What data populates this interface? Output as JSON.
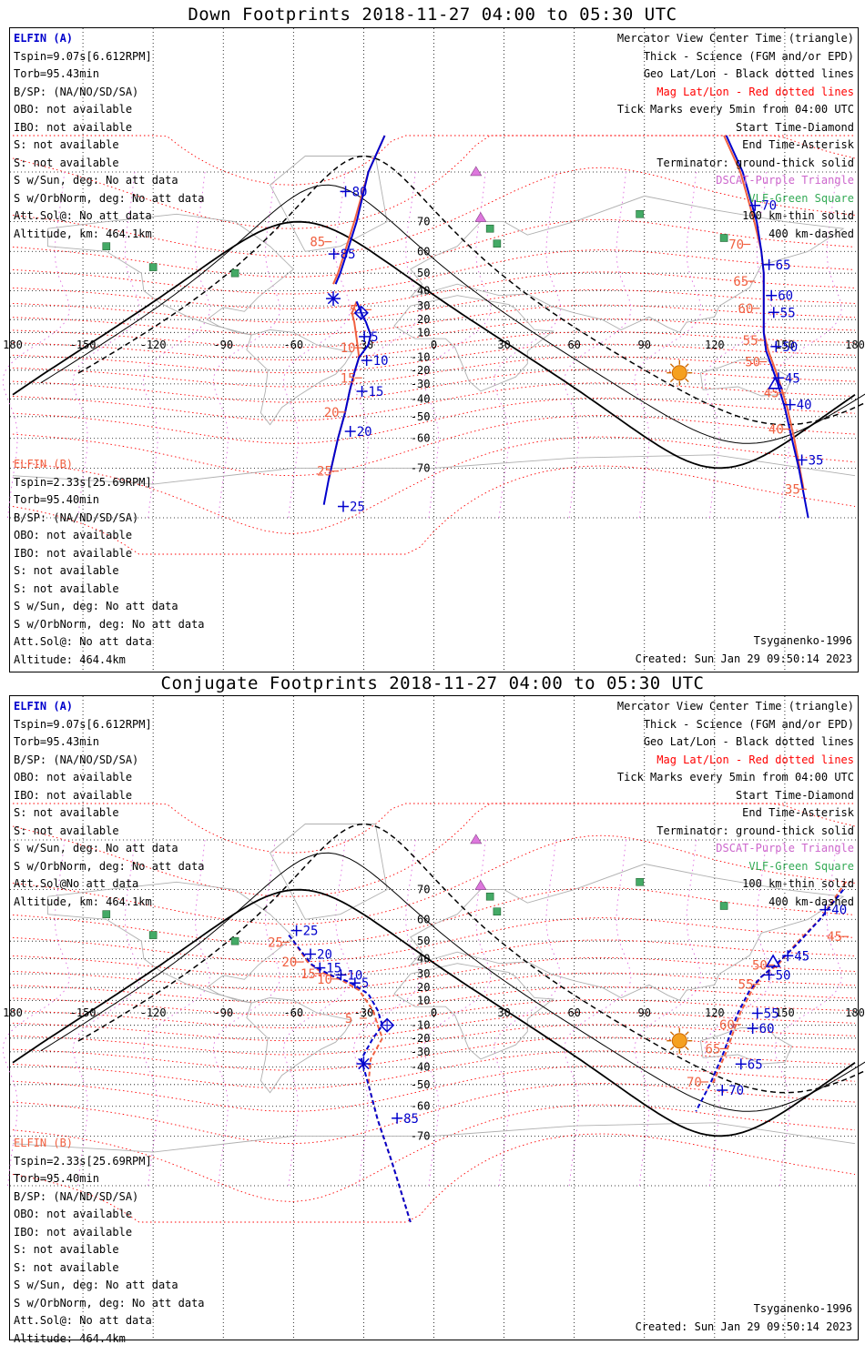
{
  "panels": [
    {
      "title": "Down Footprints 2018-11-27 04:00 to 05:30 UTC",
      "elfin_a": {
        "name": "ELFIN (A)",
        "lines": [
          "Tspin=9.07s[6.612RPM]",
          "Torb=95.43min",
          "B/SP: (NA/NO/SD/SA)",
          "OBO: not available",
          "IBO: not available",
          "S: not available",
          "S: not available",
          "S w/Sun, deg: No att data",
          "S w/OrbNorm, deg: No att data",
          "Att.Sol@: No att data",
          "Altitude, km: 464.1km"
        ]
      },
      "elfin_b": {
        "name": "ELFIN (B)",
        "lines": [
          "Tspin=2.33s[25.69RPM]",
          "Torb=95.40min",
          "B/SP: (NA/ND/SD/SA)",
          "OBO: not available",
          "IBO: not available",
          "S: not available",
          "S: not available",
          "S w/Sun, deg: No att data",
          "S w/OrbNorm, deg: No att data",
          "Att.Sol@: No att data",
          "Altitude: 464.4km"
        ]
      },
      "model": "Tsyganenko-1996",
      "created": "Created: Sun Jan 29 09:50:14 2023",
      "track_a": [
        [
          -21,
          90
        ],
        [
          -28,
          80
        ],
        [
          -33,
          70
        ],
        [
          -37,
          60
        ],
        [
          -40,
          50
        ],
        [
          -42,
          44
        ]
      ],
      "track_a_mag": [
        [
          -21,
          90
        ],
        [
          -28,
          80
        ],
        [
          -34,
          70
        ],
        [
          -38,
          60
        ],
        [
          -41,
          50
        ],
        [
          -43,
          44
        ]
      ],
      "track_b": [
        [
          -33,
          33
        ],
        [
          -31,
          25
        ],
        [
          -29,
          18
        ],
        [
          -27,
          8
        ],
        [
          -28,
          0
        ],
        [
          -32,
          -10
        ],
        [
          -34,
          -22
        ],
        [
          -36,
          -35
        ],
        [
          -38,
          -48
        ],
        [
          -41,
          -60
        ],
        [
          -45,
          -73
        ],
        [
          -47,
          -78
        ]
      ],
      "track_b_mag": [
        [
          -33,
          33
        ],
        [
          -35,
          25
        ],
        [
          -34,
          18
        ],
        [
          -33,
          5
        ],
        [
          -32,
          -10
        ],
        [
          -34,
          -22
        ],
        [
          -36,
          -35
        ],
        [
          -38,
          -48
        ],
        [
          -41,
          -60
        ],
        [
          -45,
          -73
        ]
      ],
      "track_c": [
        [
          125,
          90
        ],
        [
          132,
          80
        ],
        [
          138,
          70
        ],
        [
          140,
          60
        ],
        [
          141,
          50
        ],
        [
          141,
          38
        ],
        [
          141,
          10
        ],
        [
          142,
          -5
        ],
        [
          144,
          -15
        ],
        [
          147,
          -30
        ],
        [
          150,
          -45
        ],
        [
          153,
          -60
        ],
        [
          156,
          -70
        ],
        [
          160,
          -80
        ]
      ],
      "track_c_mag": [
        [
          124,
          90
        ],
        [
          131,
          80
        ],
        [
          137,
          70
        ],
        [
          140,
          60
        ],
        [
          141,
          50
        ],
        [
          141,
          38
        ],
        [
          141,
          10
        ],
        [
          143,
          -5
        ],
        [
          145,
          -15
        ],
        [
          148,
          -30
        ],
        [
          151,
          -45
        ],
        [
          154,
          -60
        ],
        [
          158,
          -75
        ]
      ],
      "labels_blue": [
        {
          "t": "80",
          "lon": -35,
          "lat": 76
        },
        {
          "t": "85",
          "lon": -40,
          "lat": 57
        },
        {
          "t": "5",
          "lon": -27,
          "lat": 3
        },
        {
          "t": "10",
          "lon": -26,
          "lat": -16
        },
        {
          "t": "15",
          "lon": -28,
          "lat": -38
        },
        {
          "t": "20",
          "lon": -33,
          "lat": -59
        },
        {
          "t": "25",
          "lon": -36,
          "lat": -79
        },
        {
          "t": "70",
          "lon": 140,
          "lat": 73
        },
        {
          "t": "65",
          "lon": 146,
          "lat": 52
        },
        {
          "t": "60",
          "lon": 147,
          "lat": 34
        },
        {
          "t": "55",
          "lon": 148,
          "lat": 22
        },
        {
          "t": "50",
          "lon": 149,
          "lat": -5
        },
        {
          "t": "45",
          "lon": 150,
          "lat": -29
        },
        {
          "t": "40",
          "lon": 155,
          "lat": -46
        },
        {
          "t": "35",
          "lon": 160,
          "lat": -69
        }
      ],
      "labels_mag": [
        {
          "t": "85",
          "lon": -53,
          "lat": 62
        },
        {
          "t": "5",
          "lon": -36,
          "lat": 24
        },
        {
          "t": "10",
          "lon": -40,
          "lat": -6
        },
        {
          "t": "15",
          "lon": -40,
          "lat": -29
        },
        {
          "t": "20",
          "lon": -47,
          "lat": -50
        },
        {
          "t": "25",
          "lon": -50,
          "lat": -72
        },
        {
          "t": "70",
          "lon": 126,
          "lat": 61
        },
        {
          "t": "65",
          "lon": 128,
          "lat": 43
        },
        {
          "t": "60",
          "lon": 130,
          "lat": 25
        },
        {
          "t": "55",
          "lon": 132,
          "lat": 0
        },
        {
          "t": "50",
          "lon": 133,
          "lat": -17
        },
        {
          "t": "45",
          "lon": 141,
          "lat": -39
        },
        {
          "t": "40",
          "lon": 143,
          "lat": -58
        },
        {
          "t": "35",
          "lon": 150,
          "lat": -76
        }
      ],
      "start_diamond": [
        -31,
        25
      ],
      "end_asterisk": [
        -43,
        35
      ],
      "center_triangle": [
        146,
        -30
      ]
    },
    {
      "title": "Conjugate Footprints 2018-11-27 04:00 to 05:30 UTC",
      "elfin_a": {
        "name": "ELFIN (A)",
        "lines": [
          "Tspin=9.07s[6.612RPM]",
          "Torb=95.43min",
          "B/SP: (NA/NO/SD/SA)",
          "OBO: not available",
          "IBO: not available",
          "S: not available",
          "S: not available",
          "S w/Sun, deg: No att data",
          "S w/OrbNorm, deg: No att data",
          "Att.Sol@No att data",
          "Altitude, km: 464.1km"
        ]
      },
      "elfin_b": {
        "name": "ELFIN (B)",
        "lines": [
          "Tspin=2.33s[25.69RPM]",
          "Torb=95.40min",
          "B/SP: (NA/ND/SD/SA)",
          "OBO: not available",
          "IBO: not available",
          "S: not available",
          "S: not available",
          "S w/Sun, deg: No att data",
          "S w/OrbNorm, deg: No att data",
          "Att.Sol@: No att data",
          "Altitude: 464.4km"
        ]
      },
      "model": "Tsyganenko-1996",
      "created": "Created: Sun Jan 29 09:50:14 2023",
      "track_a": [
        [
          -62,
          53
        ],
        [
          -57,
          45
        ],
        [
          -52,
          36
        ],
        [
          -44,
          29
        ],
        [
          -36,
          24
        ],
        [
          -28,
          15
        ],
        [
          -24,
          2
        ],
        [
          -22,
          -10
        ],
        [
          -26,
          -20
        ],
        [
          -31,
          -35
        ],
        [
          -28,
          -50
        ],
        [
          -24,
          -65
        ],
        [
          -18,
          -76
        ],
        [
          -10,
          -84
        ]
      ],
      "track_a_mag": [
        [
          -60,
          50
        ],
        [
          -54,
          38
        ],
        [
          -48,
          31
        ],
        [
          -40,
          26
        ],
        [
          -32,
          18
        ],
        [
          -26,
          2
        ],
        [
          -24,
          -10
        ],
        [
          -22,
          -20
        ],
        [
          -27,
          -35
        ],
        [
          -28,
          -50
        ],
        [
          -24,
          -65
        ],
        [
          -18,
          -76
        ],
        [
          -10,
          -84
        ]
      ],
      "track_b": [],
      "track_b_mag": [],
      "track_c": [
        [
          175,
          70
        ],
        [
          165,
          60
        ],
        [
          155,
          48
        ],
        [
          146,
          36
        ],
        [
          140,
          28
        ],
        [
          135,
          18
        ],
        [
          130,
          0
        ],
        [
          128,
          -10
        ],
        [
          124,
          -30
        ],
        [
          118,
          -50
        ],
        [
          112,
          -62
        ]
      ],
      "track_c_mag": [
        [
          176,
          72
        ],
        [
          166,
          61
        ],
        [
          155,
          49
        ],
        [
          147,
          36
        ],
        [
          140,
          28
        ],
        [
          136,
          18
        ],
        [
          131,
          0
        ],
        [
          129,
          -10
        ],
        [
          125,
          -30
        ],
        [
          119,
          -50
        ]
      ],
      "labels_blue": [
        {
          "t": "25",
          "lon": -56,
          "lat": 53
        },
        {
          "t": "20",
          "lon": -50,
          "lat": 40
        },
        {
          "t": "15",
          "lon": -46,
          "lat": 31
        },
        {
          "t": "10",
          "lon": -37,
          "lat": 26
        },
        {
          "t": "5",
          "lon": -31,
          "lat": 20
        },
        {
          "t": "85",
          "lon": -13,
          "lat": -66
        },
        {
          "t": "40",
          "lon": 170,
          "lat": 62
        },
        {
          "t": "45",
          "lon": 154,
          "lat": 39
        },
        {
          "t": "50",
          "lon": 146,
          "lat": 26
        },
        {
          "t": "55",
          "lon": 141,
          "lat": -4
        },
        {
          "t": "60",
          "lon": 139,
          "lat": -16
        },
        {
          "t": "65",
          "lon": 134,
          "lat": -41
        },
        {
          "t": "70",
          "lon": 126,
          "lat": -55
        }
      ],
      "labels_mag": [
        {
          "t": "25",
          "lon": -71,
          "lat": 47
        },
        {
          "t": "20",
          "lon": -65,
          "lat": 35
        },
        {
          "t": "15",
          "lon": -57,
          "lat": 27
        },
        {
          "t": "10",
          "lon": -50,
          "lat": 23
        },
        {
          "t": "5",
          "lon": -38,
          "lat": -8
        },
        {
          "t": "50",
          "lon": 136,
          "lat": 33
        },
        {
          "t": "55",
          "lon": 130,
          "lat": 19
        },
        {
          "t": "60",
          "lon": 122,
          "lat": -13
        },
        {
          "t": "65",
          "lon": 116,
          "lat": -31
        },
        {
          "t": "70",
          "lon": 108,
          "lat": -51
        },
        {
          "t": "45",
          "lon": 168,
          "lat": 50
        }
      ],
      "start_diamond": [
        -20,
        -10
      ],
      "end_asterisk": [
        -30,
        -38
      ],
      "center_triangle": [
        145,
        38
      ]
    }
  ],
  "legend_right": [
    {
      "text": "Mercator View Center Time (triangle)",
      "color": "#000000"
    },
    {
      "text": "Thick - Science (FGM and/or EPD)",
      "color": "#000000"
    },
    {
      "text": "Geo Lat/Lon - Black dotted lines",
      "color": "#000000"
    },
    {
      "text": "Mag Lat/Lon - Red dotted lines",
      "color": "#ff0000"
    },
    {
      "text": "Tick Marks every 5min from 04:00 UTC",
      "color": "#000000"
    },
    {
      "text": "Start Time-Diamond",
      "color": "#000000"
    },
    {
      "text": "End Time-Asterisk",
      "color": "#000000"
    },
    {
      "text": "Terminator: ground-thick solid",
      "color": "#000000"
    },
    {
      "text": "DSCAT-Purple Triangle",
      "color": "#cc66cc"
    },
    {
      "text": "VLF-Green Square",
      "color": "#33aa55"
    },
    {
      "text": "100 km-thin solid",
      "color": "#000000"
    },
    {
      "text": "400 km-dashed",
      "color": "#000000"
    }
  ],
  "lon_ticks": [
    "180",
    "-150",
    "-120",
    "-90",
    "-60",
    "-30",
    "0",
    "30",
    "60",
    "90",
    "120",
    "150",
    "180"
  ],
  "lat_ticks": [
    "70",
    "60",
    "50",
    "40",
    "30",
    "20",
    "10",
    "-10",
    "-20",
    "-30",
    "-40",
    "-50",
    "-60",
    "-70"
  ],
  "sun_lon": 105,
  "sun_lat": -22,
  "vlf_squares": [
    [
      -140,
      62
    ],
    [
      -120,
      53
    ],
    [
      -85,
      50
    ],
    [
      24,
      68
    ],
    [
      27,
      63
    ],
    [
      88,
      72
    ],
    [
      124,
      65
    ]
  ],
  "dscat_triangles": [
    [
      18,
      80
    ],
    [
      20,
      71
    ]
  ],
  "colors": {
    "blue": "#0000cc",
    "orange": "#f06040",
    "red": "#ff0000",
    "magenta": "#dd66dd",
    "green": "#44aa66",
    "sun": "#f5a020"
  }
}
